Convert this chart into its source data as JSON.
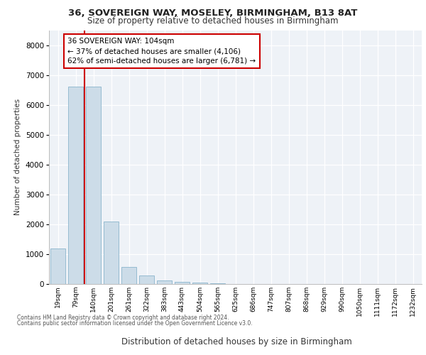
{
  "title_line1": "36, SOVEREIGN WAY, MOSELEY, BIRMINGHAM, B13 8AT",
  "title_line2": "Size of property relative to detached houses in Birmingham",
  "xlabel": "Distribution of detached houses by size in Birmingham",
  "ylabel": "Number of detached properties",
  "categories": [
    "19sqm",
    "79sqm",
    "140sqm",
    "201sqm",
    "261sqm",
    "322sqm",
    "383sqm",
    "443sqm",
    "504sqm",
    "565sqm",
    "625sqm",
    "686sqm",
    "747sqm",
    "807sqm",
    "868sqm",
    "929sqm",
    "990sqm",
    "1050sqm",
    "1111sqm",
    "1172sqm",
    "1232sqm"
  ],
  "values": [
    1200,
    6600,
    6600,
    2100,
    580,
    280,
    120,
    75,
    40,
    20,
    8,
    4,
    2,
    1,
    1,
    0,
    0,
    0,
    0,
    0,
    0
  ],
  "bar_color": "#ccdce8",
  "bar_edge_color": "#8ab4cc",
  "annotation_text": "36 SOVEREIGN WAY: 104sqm\n← 37% of detached houses are smaller (4,106)\n62% of semi-detached houses are larger (6,781) →",
  "vline_x": 1.5,
  "vline_color": "#cc0000",
  "footer_line1": "Contains HM Land Registry data © Crown copyright and database right 2024.",
  "footer_line2": "Contains public sector information licensed under the Open Government Licence v3.0.",
  "ylim": [
    0,
    8500
  ],
  "yticks": [
    0,
    1000,
    2000,
    3000,
    4000,
    5000,
    6000,
    7000,
    8000
  ],
  "plot_bg_color": "#eef2f7"
}
